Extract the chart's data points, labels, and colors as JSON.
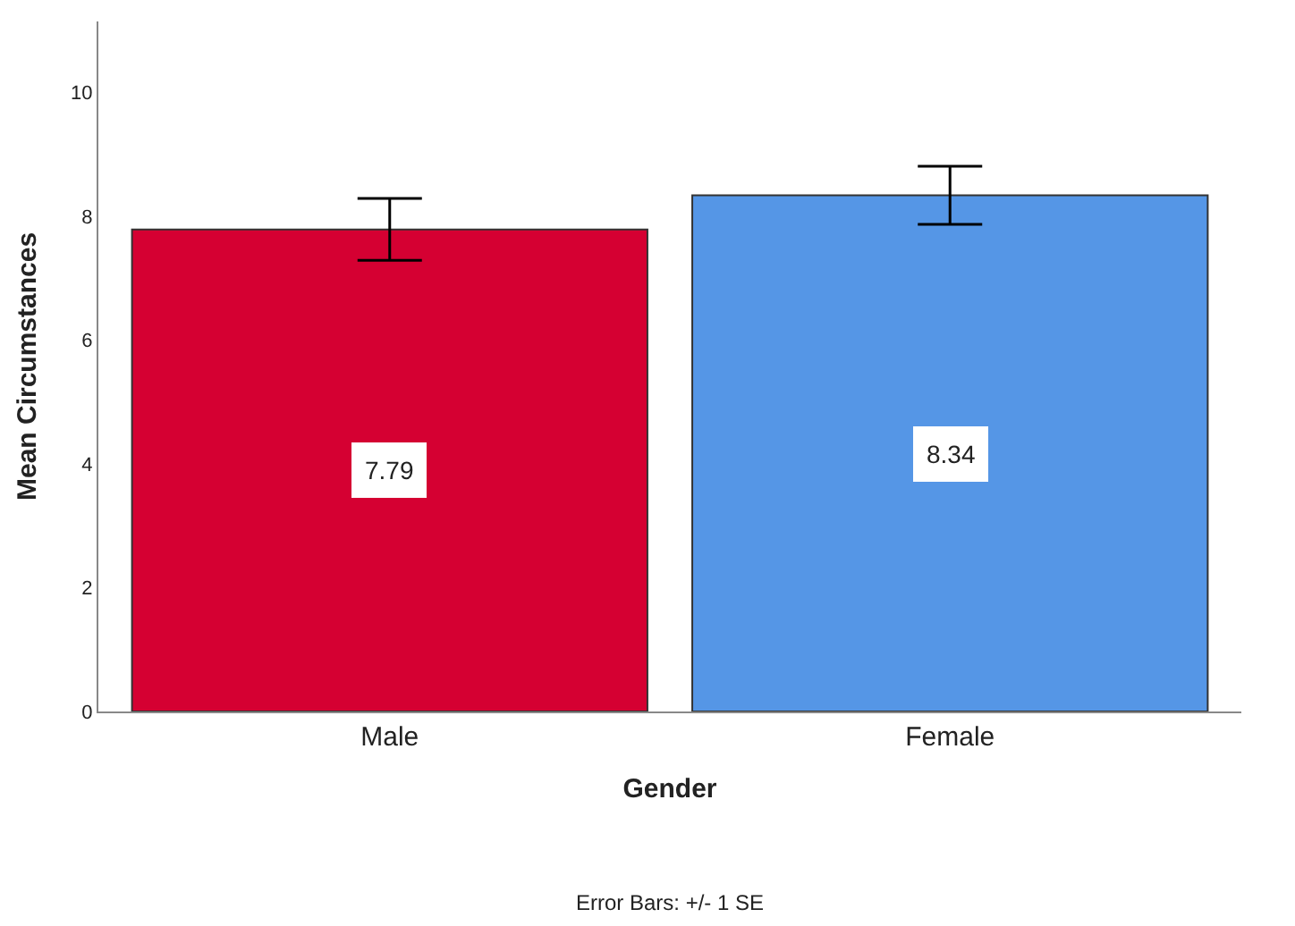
{
  "chart_data": {
    "type": "bar",
    "xlabel": "Gender",
    "ylabel": "Mean Circumstances",
    "categories": [
      "Male",
      "Female"
    ],
    "values": [
      7.79,
      8.34
    ],
    "colors": [
      "#d50032",
      "#5596e6"
    ],
    "errors": [
      0.5,
      0.47
    ],
    "data_labels": true,
    "ylim": [
      0,
      11.15
    ],
    "yticks": [
      0,
      2,
      4,
      6,
      8,
      10
    ],
    "legend": false,
    "annotations": [
      "Error Bars: +/- 1 SE"
    ]
  }
}
